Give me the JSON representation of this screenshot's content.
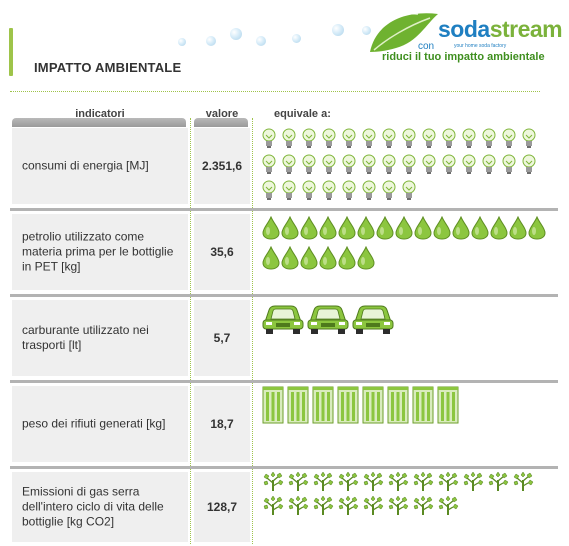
{
  "header": {
    "title": "IMPATTO AMBIENTALE",
    "logo": {
      "part1": "soda",
      "part2": "stream",
      "con": "con",
      "tagline": "your home soda factory"
    },
    "slogan": "riduci il tuo impatto ambientale"
  },
  "columns": {
    "indicator": "indicatori",
    "value": "valore",
    "equivalent": "equivale a:"
  },
  "rows": [
    {
      "indicator": "consumi di energia [MJ]",
      "value": "2.351,6",
      "icon": "lightbulb-icon",
      "icon_count": 36
    },
    {
      "indicator": "petrolio utilizzato come materia prima per le bottiglie in PET [kg]",
      "value": "35,6",
      "icon": "oil-drop-icon",
      "icon_count": 21
    },
    {
      "indicator": "carburante utilizzato nei trasporti [lt]",
      "value": "5,7",
      "icon": "car-icon",
      "icon_count": 3
    },
    {
      "indicator": "peso dei rifiuti generati [kg]",
      "value": "18,7",
      "icon": "waste-bin-icon",
      "icon_count": 8
    },
    {
      "indicator": "Emissioni di gas serra dell'intero ciclo di vita delle bottiglie [kg CO2]",
      "value": "128,7",
      "icon": "tree-icon",
      "icon_count": 19
    }
  ],
  "colors": {
    "accent_green": "#9ec44a",
    "brand_blue": "#1f7fc1",
    "brand_green": "#7bb23b",
    "slogan_green": "#3f8f1f",
    "cell_gray": "#efefef",
    "icon_green": "#8cc63f"
  }
}
